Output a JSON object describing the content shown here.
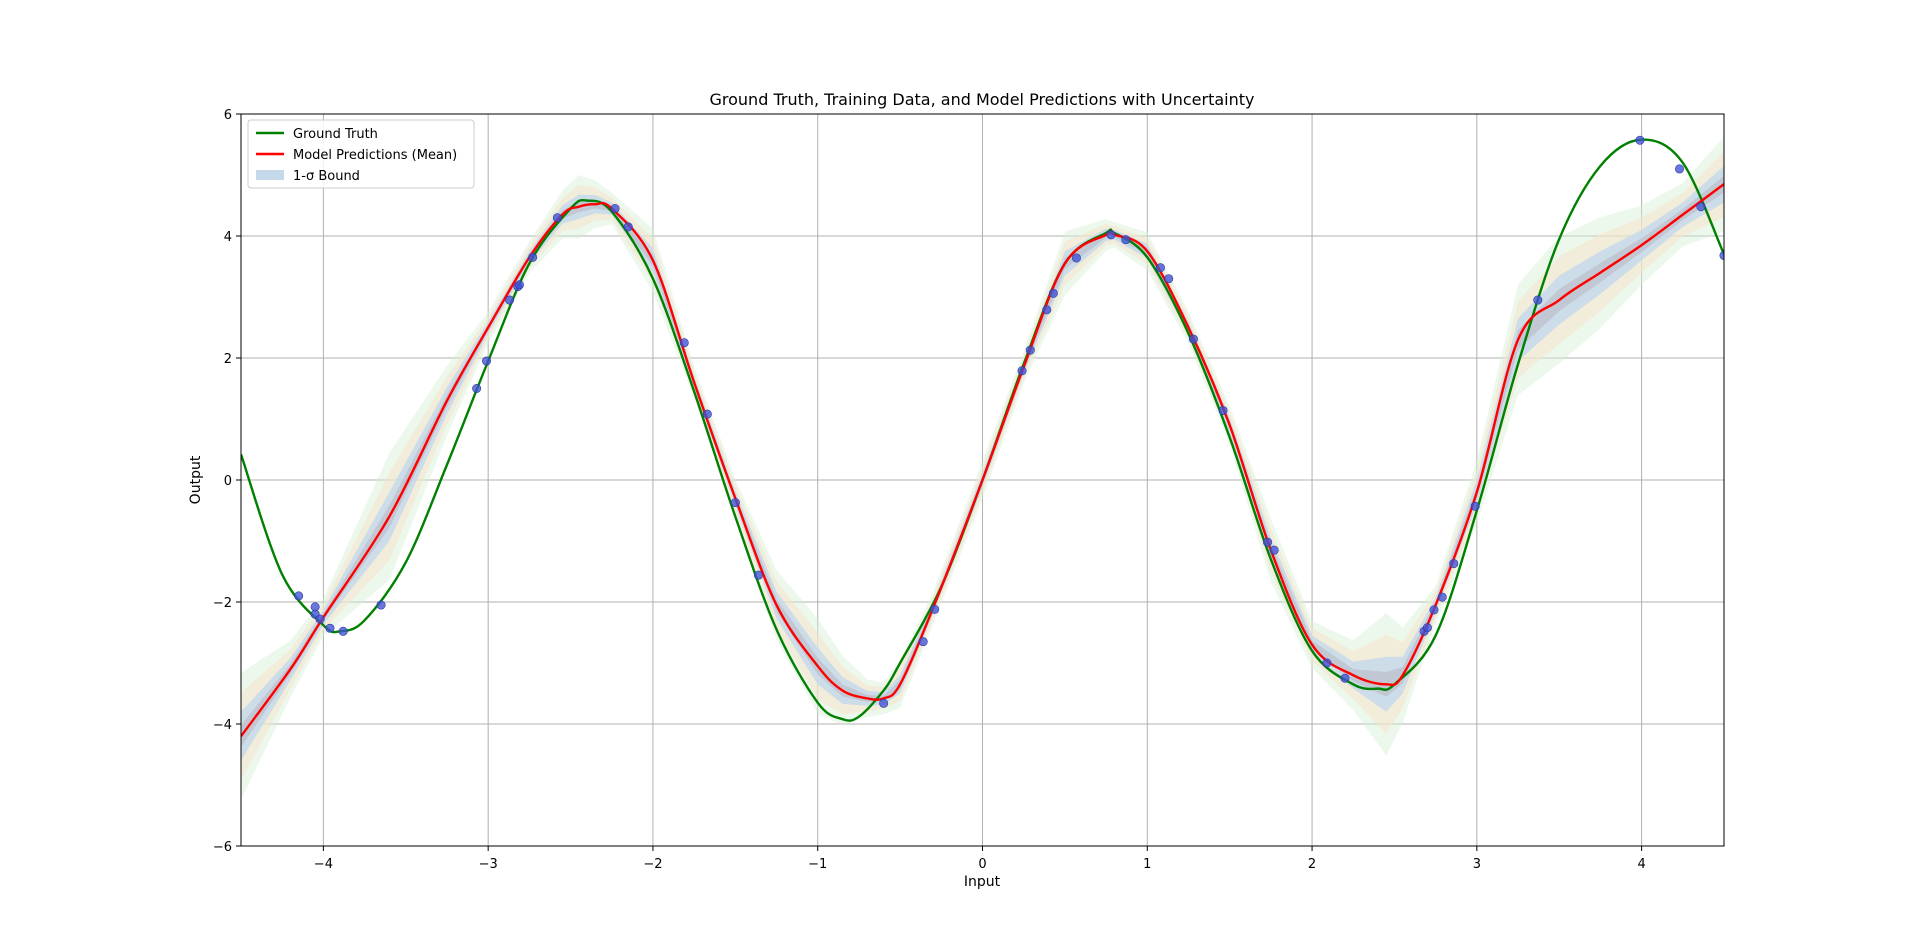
{
  "chart_data": {
    "type": "line",
    "title": "Ground Truth, Training Data, and Model Predictions with Uncertainty",
    "xlabel": "Input",
    "ylabel": "Output",
    "xlim": [
      -4.5,
      4.5
    ],
    "ylim": [
      -6,
      6
    ],
    "xticks": [
      -4,
      -3,
      -2,
      -1,
      0,
      1,
      2,
      3,
      4
    ],
    "xtick_labels": [
      "−4",
      "−3",
      "−2",
      "−1",
      "0",
      "1",
      "2",
      "3",
      "4"
    ],
    "yticks": [
      -6,
      -4,
      -2,
      0,
      2,
      4,
      6
    ],
    "ytick_labels": [
      "−6",
      "−4",
      "−2",
      "0",
      "2",
      "4",
      "6"
    ],
    "grid": true,
    "legend_position": "top-left",
    "legend": [
      {
        "label": "Ground Truth",
        "kind": "line",
        "color": "#008000"
      },
      {
        "label": "Model Predictions (Mean)",
        "kind": "line",
        "color": "#ff0000"
      },
      {
        "label": "1-σ Bound",
        "kind": "patch",
        "color": "#c6d9ea"
      }
    ],
    "ground_truth": {
      "name": "Ground Truth",
      "color": "#008000",
      "x": [
        -4.5,
        -4.25,
        -4.0,
        -3.9,
        -3.75,
        -3.5,
        -3.25,
        -3.0,
        -2.75,
        -2.5,
        -2.4,
        -2.25,
        -2.0,
        -1.75,
        -1.5,
        -1.25,
        -1.0,
        -0.85,
        -0.75,
        -0.6,
        -0.5,
        -0.25,
        0.0,
        0.25,
        0.5,
        0.75,
        0.8,
        1.0,
        1.25,
        1.5,
        1.75,
        2.0,
        2.25,
        2.4,
        2.5,
        2.75,
        3.0,
        3.25,
        3.5,
        3.75,
        4.0,
        4.25,
        4.5
      ],
      "y": [
        0.42,
        -1.55,
        -2.38,
        -2.48,
        -2.3,
        -1.35,
        0.25,
        1.95,
        3.55,
        4.45,
        4.58,
        4.4,
        3.3,
        1.45,
        -0.6,
        -2.45,
        -3.65,
        -3.92,
        -3.88,
        -3.45,
        -3.0,
        -1.75,
        0.0,
        1.9,
        3.55,
        4.05,
        4.05,
        3.65,
        2.4,
        0.7,
        -1.3,
        -2.8,
        -3.35,
        -3.42,
        -3.35,
        -2.55,
        -0.5,
        1.9,
        3.95,
        5.15,
        5.58,
        5.2,
        3.7
      ]
    },
    "model_mean": {
      "name": "Model Predictions (Mean)",
      "color": "#ff0000",
      "x": [
        -4.5,
        -4.2,
        -4.0,
        -3.6,
        -3.25,
        -3.0,
        -2.75,
        -2.55,
        -2.45,
        -2.35,
        -2.25,
        -2.0,
        -1.75,
        -1.5,
        -1.25,
        -1.0,
        -0.85,
        -0.7,
        -0.6,
        -0.5,
        -0.3,
        0.0,
        0.25,
        0.5,
        0.75,
        0.8,
        1.0,
        1.25,
        1.5,
        1.75,
        2.0,
        2.25,
        2.45,
        2.55,
        2.75,
        3.0,
        3.25,
        3.5,
        3.75,
        4.0,
        4.25,
        4.5
      ],
      "y": [
        -4.2,
        -3.1,
        -2.25,
        -0.6,
        1.3,
        2.5,
        3.65,
        4.35,
        4.48,
        4.52,
        4.45,
        3.6,
        1.6,
        -0.3,
        -2.05,
        -3.05,
        -3.45,
        -3.58,
        -3.58,
        -3.35,
        -2.1,
        0.0,
        1.85,
        3.55,
        4.02,
        4.02,
        3.75,
        2.5,
        0.9,
        -1.15,
        -2.7,
        -3.2,
        -3.35,
        -3.2,
        -2.05,
        -0.2,
        2.3,
        2.95,
        3.4,
        3.85,
        4.35,
        4.85
      ]
    },
    "sigma_band": {
      "name": "1-σ Bound",
      "color": "#c6d9ea",
      "x": [
        -4.5,
        -4.2,
        -4.0,
        -3.6,
        -3.25,
        -3.0,
        -2.75,
        -2.55,
        -2.45,
        -2.35,
        -2.25,
        -2.0,
        -1.75,
        -1.5,
        -1.25,
        -1.0,
        -0.85,
        -0.7,
        -0.6,
        -0.5,
        -0.3,
        0.0,
        0.25,
        0.5,
        0.75,
        0.8,
        1.0,
        1.25,
        1.5,
        1.75,
        2.0,
        2.25,
        2.45,
        2.55,
        2.75,
        3.0,
        3.25,
        3.5,
        3.75,
        4.0,
        4.25,
        4.5
      ],
      "sigma": [
        0.4,
        0.18,
        0.12,
        0.4,
        0.22,
        0.1,
        0.1,
        0.15,
        0.2,
        0.15,
        0.1,
        0.2,
        0.1,
        0.12,
        0.22,
        0.3,
        0.22,
        0.12,
        0.1,
        0.15,
        0.1,
        0.12,
        0.1,
        0.2,
        0.1,
        0.08,
        0.12,
        0.1,
        0.12,
        0.2,
        0.15,
        0.22,
        0.45,
        0.3,
        0.12,
        0.2,
        0.35,
        0.4,
        0.35,
        0.25,
        0.2,
        0.3
      ]
    },
    "training_points": {
      "name": "Training Data",
      "color": "#3f51d6",
      "x": [
        -4.15,
        -4.05,
        -4.05,
        -4.02,
        -3.96,
        -3.88,
        -3.65,
        -3.07,
        -3.01,
        -2.87,
        -2.82,
        -2.81,
        -2.73,
        -2.58,
        -2.23,
        -2.15,
        -1.81,
        -1.67,
        -1.5,
        -1.36,
        -0.6,
        -0.36,
        -0.29,
        0.24,
        0.29,
        0.39,
        0.43,
        0.57,
        0.78,
        0.87,
        1.08,
        1.13,
        1.28,
        1.46,
        1.73,
        1.77,
        2.09,
        2.2,
        2.68,
        2.7,
        2.74,
        2.79,
        2.86,
        2.99,
        3.37,
        3.99,
        4.23,
        4.36,
        4.5
      ],
      "y": [
        -1.9,
        -2.08,
        -2.2,
        -2.28,
        -2.43,
        -2.48,
        -2.05,
        1.5,
        1.95,
        2.95,
        3.17,
        3.2,
        3.65,
        4.3,
        4.45,
        4.15,
        2.25,
        1.08,
        -0.37,
        -1.56,
        -3.66,
        -2.65,
        -2.12,
        1.79,
        2.13,
        2.79,
        3.06,
        3.64,
        4.02,
        3.94,
        3.48,
        3.3,
        2.31,
        1.14,
        -1.02,
        -1.15,
        -3.0,
        -3.25,
        -2.48,
        -2.42,
        -2.13,
        -1.92,
        -1.37,
        -0.43,
        2.95,
        5.57,
        5.1,
        4.48,
        3.68
      ]
    }
  }
}
